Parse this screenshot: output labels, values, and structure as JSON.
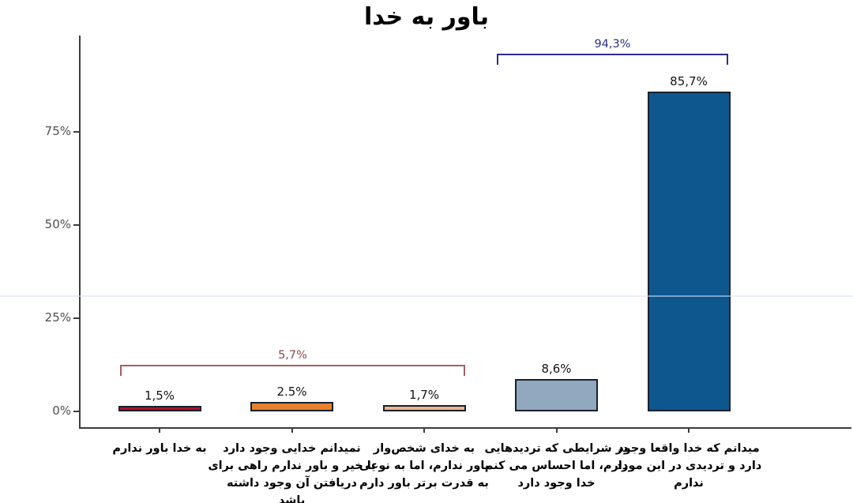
{
  "chart_data": {
    "type": "bar",
    "title": "باور به خدا",
    "categories": [
      [
        "به خدا باور ندارم"
      ],
      [
        "نمیدانم خدایی وجود دارد",
        "یا خیر و باور ندارم راهی برای",
        "دریافتن آن وجود داشته",
        "باشد"
      ],
      [
        "به خدای شخص‌وار",
        "باور ندارم، اما به نوعی",
        "به قدرت برتر باور دارم"
      ],
      [
        "در شرایطی که تردیدهایی",
        "دارم، اما احساس می کنم",
        "خدا وجود دارد"
      ],
      [
        "میدانم که خدا واقعا وجود",
        "دارد و تردیدی در این مورد",
        "ندارم"
      ]
    ],
    "values": [
      1.5,
      2.5,
      1.7,
      8.6,
      85.7
    ],
    "value_labels": [
      "1,5%",
      "2.5%",
      "1,7%",
      "8,6%",
      "85,7%"
    ],
    "bar_colors": [
      "#B01226",
      "#E8812D",
      "#EFB489",
      "#91A8BE",
      "#0E578E"
    ],
    "bar_border_color": "#18202E",
    "axis_color": "#3C3C3C",
    "y_tick_labels": [
      "0%",
      "25%",
      "50%",
      "75%"
    ],
    "y_tick_values": [
      0,
      25,
      50,
      75
    ],
    "ylim": [
      0,
      100
    ],
    "grid": false,
    "legend": false,
    "annotations": [
      {
        "label": "5,7%",
        "line_color": "#A36060",
        "text_color": "#8A4A4A",
        "x1": 152,
        "x2": 589,
        "y": 462
      },
      {
        "label": "94,3%",
        "line_color": "#2B2D8E",
        "text_color": "#2B2D8E",
        "x1": 629,
        "x2": 922,
        "y": 68
      }
    ]
  }
}
